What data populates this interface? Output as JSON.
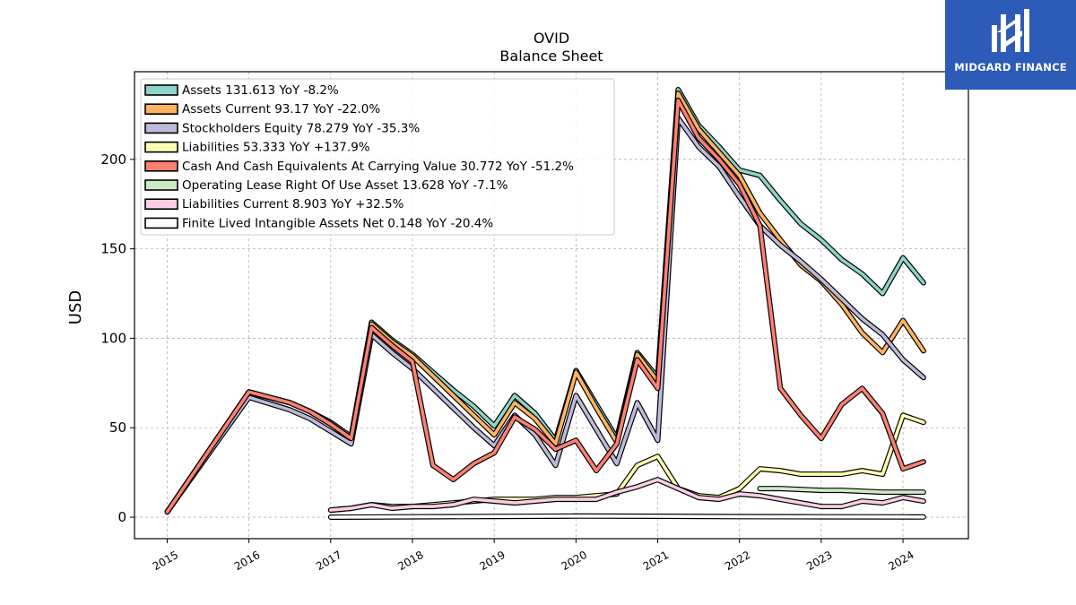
{
  "brand": {
    "name": "MIDGARD FINANCE",
    "color": "#2c5bb8"
  },
  "chart_data": {
    "type": "line",
    "title": "OVID",
    "subtitle": "Balance  Sheet",
    "xlabel": "",
    "ylabel": "USD",
    "xlim": [
      2014.6,
      2024.8
    ],
    "ylim": [
      -12,
      249
    ],
    "x_ticks": [
      "2015",
      "2016",
      "2017",
      "2018",
      "2019",
      "2020",
      "2021",
      "2022",
      "2023",
      "2024"
    ],
    "y_ticks": [
      0,
      50,
      100,
      150,
      200
    ],
    "grid": true,
    "legend_position": "top-left",
    "series": [
      {
        "name": "Assets",
        "legend": "Assets  131.613 YoY -8.2%",
        "color": "#8dd3c7",
        "points": [
          [
            2015.0,
            3
          ],
          [
            2016.0,
            70
          ],
          [
            2016.5,
            64
          ],
          [
            2016.75,
            59
          ],
          [
            2017.0,
            53
          ],
          [
            2017.25,
            45
          ],
          [
            2017.5,
            109
          ],
          [
            2017.75,
            99
          ],
          [
            2018.0,
            91
          ],
          [
            2018.25,
            81
          ],
          [
            2018.5,
            71
          ],
          [
            2018.75,
            62
          ],
          [
            2019.0,
            51
          ],
          [
            2019.25,
            68
          ],
          [
            2019.5,
            58
          ],
          [
            2019.75,
            43
          ],
          [
            2020.0,
            82
          ],
          [
            2020.25,
            63
          ],
          [
            2020.5,
            44
          ],
          [
            2020.75,
            92
          ],
          [
            2021.0,
            78
          ],
          [
            2021.25,
            239
          ],
          [
            2021.5,
            219
          ],
          [
            2021.75,
            207
          ],
          [
            2022.0,
            194
          ],
          [
            2022.25,
            191
          ],
          [
            2022.5,
            177
          ],
          [
            2022.75,
            164
          ],
          [
            2023.0,
            155
          ],
          [
            2023.25,
            144
          ],
          [
            2023.5,
            136
          ],
          [
            2023.75,
            125
          ],
          [
            2024.0,
            145
          ],
          [
            2024.25,
            131
          ]
        ]
      },
      {
        "name": "Assets Current",
        "legend": "Assets Current  93.17 YoY -22.0%",
        "color": "#fdb462",
        "points": [
          [
            2015.0,
            3
          ],
          [
            2016.0,
            70
          ],
          [
            2016.5,
            64
          ],
          [
            2016.75,
            59
          ],
          [
            2017.0,
            52
          ],
          [
            2017.25,
            44
          ],
          [
            2017.5,
            108
          ],
          [
            2017.75,
            98
          ],
          [
            2018.0,
            90
          ],
          [
            2018.25,
            79
          ],
          [
            2018.5,
            68
          ],
          [
            2018.75,
            57
          ],
          [
            2019.0,
            46
          ],
          [
            2019.25,
            64
          ],
          [
            2019.5,
            55
          ],
          [
            2019.75,
            41
          ],
          [
            2020.0,
            81
          ],
          [
            2020.25,
            61
          ],
          [
            2020.5,
            42
          ],
          [
            2020.75,
            91
          ],
          [
            2021.0,
            76
          ],
          [
            2021.25,
            237
          ],
          [
            2021.5,
            217
          ],
          [
            2021.75,
            204
          ],
          [
            2022.0,
            191
          ],
          [
            2022.25,
            170
          ],
          [
            2022.5,
            155
          ],
          [
            2022.75,
            141
          ],
          [
            2023.0,
            132
          ],
          [
            2023.25,
            119
          ],
          [
            2023.5,
            103
          ],
          [
            2023.75,
            92
          ],
          [
            2024.0,
            110
          ],
          [
            2024.25,
            93
          ]
        ]
      },
      {
        "name": "Stockholders Equity",
        "legend": "Stockholders Equity  78.279 YoY -35.3%",
        "color": "#bebada",
        "points": [
          [
            2015.0,
            3
          ],
          [
            2016.0,
            67
          ],
          [
            2016.5,
            60
          ],
          [
            2016.75,
            55
          ],
          [
            2017.0,
            48
          ],
          [
            2017.25,
            41
          ],
          [
            2017.5,
            102
          ],
          [
            2017.75,
            92
          ],
          [
            2018.0,
            83
          ],
          [
            2018.25,
            72
          ],
          [
            2018.5,
            61
          ],
          [
            2018.75,
            50
          ],
          [
            2019.0,
            40
          ],
          [
            2019.25,
            57
          ],
          [
            2019.5,
            46
          ],
          [
            2019.75,
            29
          ],
          [
            2020.0,
            68
          ],
          [
            2020.25,
            49
          ],
          [
            2020.5,
            30
          ],
          [
            2020.75,
            64
          ],
          [
            2021.0,
            43
          ],
          [
            2021.25,
            223
          ],
          [
            2021.5,
            207
          ],
          [
            2021.75,
            196
          ],
          [
            2022.0,
            179
          ],
          [
            2022.25,
            163
          ],
          [
            2022.5,
            152
          ],
          [
            2022.75,
            143
          ],
          [
            2023.0,
            133
          ],
          [
            2023.25,
            122
          ],
          [
            2023.5,
            111
          ],
          [
            2023.75,
            102
          ],
          [
            2024.0,
            88
          ],
          [
            2024.25,
            78
          ]
        ]
      },
      {
        "name": "Liabilities",
        "legend": "Liabilities  53.333 YoY +137.9%",
        "color": "#ffffb3",
        "points": [
          [
            2017.0,
            4
          ],
          [
            2017.25,
            5
          ],
          [
            2017.5,
            7
          ],
          [
            2017.75,
            6
          ],
          [
            2018.0,
            6
          ],
          [
            2018.25,
            7
          ],
          [
            2018.5,
            8
          ],
          [
            2018.75,
            9
          ],
          [
            2019.0,
            10
          ],
          [
            2019.25,
            10
          ],
          [
            2019.5,
            10
          ],
          [
            2019.75,
            11
          ],
          [
            2020.0,
            11
          ],
          [
            2020.25,
            12
          ],
          [
            2020.5,
            13
          ],
          [
            2020.75,
            29
          ],
          [
            2021.0,
            34
          ],
          [
            2021.25,
            16
          ],
          [
            2021.5,
            12
          ],
          [
            2021.75,
            11
          ],
          [
            2022.0,
            16
          ],
          [
            2022.25,
            27
          ],
          [
            2022.5,
            26
          ],
          [
            2022.75,
            24
          ],
          [
            2023.0,
            24
          ],
          [
            2023.25,
            24
          ],
          [
            2023.5,
            26
          ],
          [
            2023.75,
            24
          ],
          [
            2024.0,
            57
          ],
          [
            2024.25,
            53
          ]
        ]
      },
      {
        "name": "Cash And Cash Equivalents At Carrying Value",
        "legend": "Cash And Cash Equivalents At Carrying Value  30.772 YoY -51.2%",
        "color": "#fb8072",
        "points": [
          [
            2015.0,
            3
          ],
          [
            2016.0,
            70
          ],
          [
            2016.5,
            64
          ],
          [
            2016.75,
            59
          ],
          [
            2017.0,
            52
          ],
          [
            2017.25,
            44
          ],
          [
            2017.5,
            106
          ],
          [
            2017.75,
            96
          ],
          [
            2018.0,
            87
          ],
          [
            2018.25,
            29
          ],
          [
            2018.5,
            21
          ],
          [
            2018.75,
            30
          ],
          [
            2019.0,
            36
          ],
          [
            2019.25,
            56
          ],
          [
            2019.5,
            49
          ],
          [
            2019.75,
            38
          ],
          [
            2020.0,
            43
          ],
          [
            2020.25,
            26
          ],
          [
            2020.5,
            41
          ],
          [
            2020.75,
            88
          ],
          [
            2021.0,
            72
          ],
          [
            2021.25,
            233
          ],
          [
            2021.5,
            212
          ],
          [
            2021.75,
            200
          ],
          [
            2022.0,
            186
          ],
          [
            2022.25,
            163
          ],
          [
            2022.5,
            72
          ],
          [
            2022.75,
            57
          ],
          [
            2023.0,
            44
          ],
          [
            2023.25,
            63
          ],
          [
            2023.5,
            72
          ],
          [
            2023.75,
            58
          ],
          [
            2024.0,
            27
          ],
          [
            2024.25,
            31
          ]
        ]
      },
      {
        "name": "Operating Lease Right Of Use Asset",
        "legend": "Operating Lease Right Of Use Asset  13.628 YoY -7.1%",
        "color": "#ccebc5",
        "points": [
          [
            2022.25,
            16
          ],
          [
            2022.5,
            16
          ],
          [
            2022.75,
            15.5
          ],
          [
            2023.0,
            15
          ],
          [
            2023.25,
            15
          ],
          [
            2023.5,
            14.5
          ],
          [
            2023.75,
            14
          ],
          [
            2024.0,
            14
          ],
          [
            2024.25,
            14
          ]
        ]
      },
      {
        "name": "Liabilities Current",
        "legend": "Liabilities Current  8.903 YoY +32.5%",
        "color": "#fccde5",
        "points": [
          [
            2017.0,
            4
          ],
          [
            2017.25,
            5
          ],
          [
            2017.5,
            7
          ],
          [
            2017.75,
            5
          ],
          [
            2018.0,
            6
          ],
          [
            2018.25,
            6
          ],
          [
            2018.5,
            7
          ],
          [
            2018.75,
            10
          ],
          [
            2019.0,
            9
          ],
          [
            2019.25,
            8
          ],
          [
            2019.5,
            9
          ],
          [
            2019.75,
            10
          ],
          [
            2020.0,
            10
          ],
          [
            2020.25,
            10
          ],
          [
            2020.5,
            14
          ],
          [
            2020.75,
            17
          ],
          [
            2021.0,
            21
          ],
          [
            2021.25,
            16
          ],
          [
            2021.5,
            11
          ],
          [
            2021.75,
            10
          ],
          [
            2022.0,
            13
          ],
          [
            2022.25,
            12
          ],
          [
            2022.5,
            10
          ],
          [
            2022.75,
            8
          ],
          [
            2023.0,
            6
          ],
          [
            2023.25,
            6
          ],
          [
            2023.5,
            9
          ],
          [
            2023.75,
            8
          ],
          [
            2024.0,
            11
          ],
          [
            2024.25,
            9
          ]
        ]
      },
      {
        "name": "Finite Lived Intangible Assets Net",
        "legend": "Finite Lived Intangible Assets Net  0.148 YoY -20.4%",
        "color": "#ffffff",
        "points": [
          [
            2017.0,
            0
          ],
          [
            2018.0,
            0.2
          ],
          [
            2019.0,
            0.4
          ],
          [
            2020.0,
            0.6
          ],
          [
            2021.0,
            0.5
          ],
          [
            2022.0,
            0.3
          ],
          [
            2023.0,
            0.2
          ],
          [
            2024.0,
            0.15
          ],
          [
            2024.25,
            0.148
          ]
        ]
      }
    ]
  }
}
